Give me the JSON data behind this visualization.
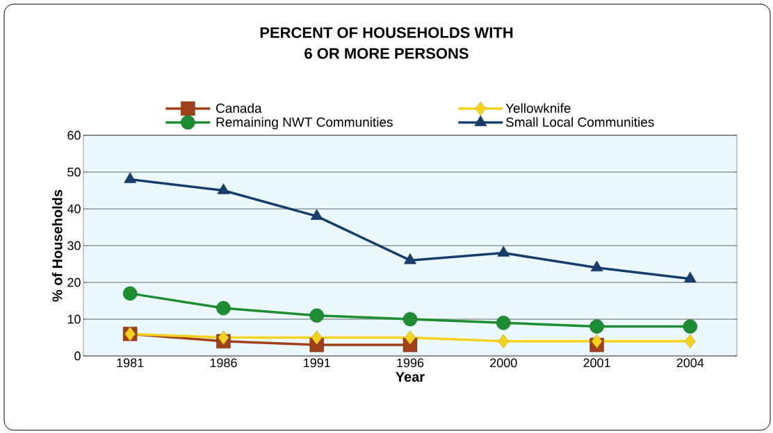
{
  "chart_data": {
    "type": "line",
    "title": "PERCENT OF HOUSEHOLDS WITH\n6 OR MORE PERSONS",
    "xlabel": "Year",
    "ylabel": "% of Households",
    "categories": [
      "1981",
      "1986",
      "1991",
      "1996",
      "2000",
      "2001",
      "2004"
    ],
    "series": [
      {
        "name": "Canada",
        "color": "#a0401a",
        "marker": "square",
        "values": [
          6,
          4,
          3,
          3,
          null,
          3,
          null
        ]
      },
      {
        "name": "Yellowknife",
        "color": "#f5d21f",
        "marker": "diamond",
        "values": [
          6,
          5,
          5,
          5,
          4,
          4,
          4
        ]
      },
      {
        "name": "Remaining NWT Communities",
        "color": "#1e8c32",
        "marker": "circle",
        "values": [
          17,
          13,
          11,
          10,
          9,
          8,
          8
        ]
      },
      {
        "name": "Small Local Communities",
        "color": "#173d6b",
        "marker": "triangle",
        "values": [
          48,
          45,
          38,
          26,
          28,
          24,
          21
        ]
      }
    ],
    "ylim": [
      0,
      60
    ],
    "yticks": [
      0,
      10,
      20,
      30,
      40,
      50,
      60
    ],
    "grid": "y",
    "legend": "top"
  }
}
